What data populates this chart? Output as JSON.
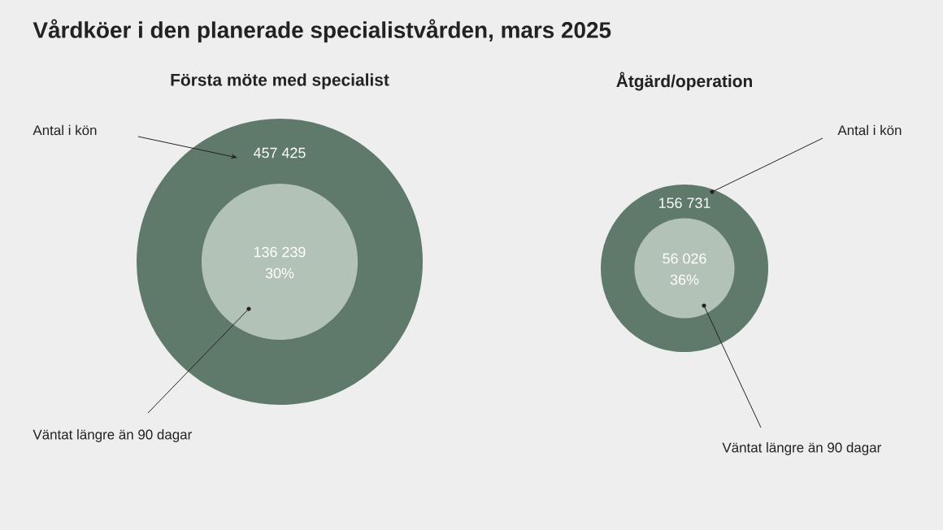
{
  "chart_data": [
    {
      "type": "other",
      "title": "Vårdköer i den planerade specialistvården, mars 2025",
      "subtitle": "Första möte med specialist",
      "categories": [
        "Antal i kön",
        "Väntat längre än 90 dagar"
      ],
      "values": [
        457425,
        136239
      ],
      "value_labels": [
        "457 425",
        "136 239"
      ],
      "colors": [
        "#5f7a6a",
        "#b3c2b6"
      ],
      "annotations": [
        "30%"
      ]
    },
    {
      "type": "other",
      "title": "Åtgärd/operation",
      "categories": [
        "Antal i kön",
        "Väntat längre än 90 dagar"
      ],
      "values": [
        156731,
        56026
      ],
      "value_labels": [
        "156 731",
        "56 026"
      ],
      "colors": [
        "#5f7a6a",
        "#b3c2b6"
      ],
      "annotations": [
        "36%"
      ]
    }
  ]
}
